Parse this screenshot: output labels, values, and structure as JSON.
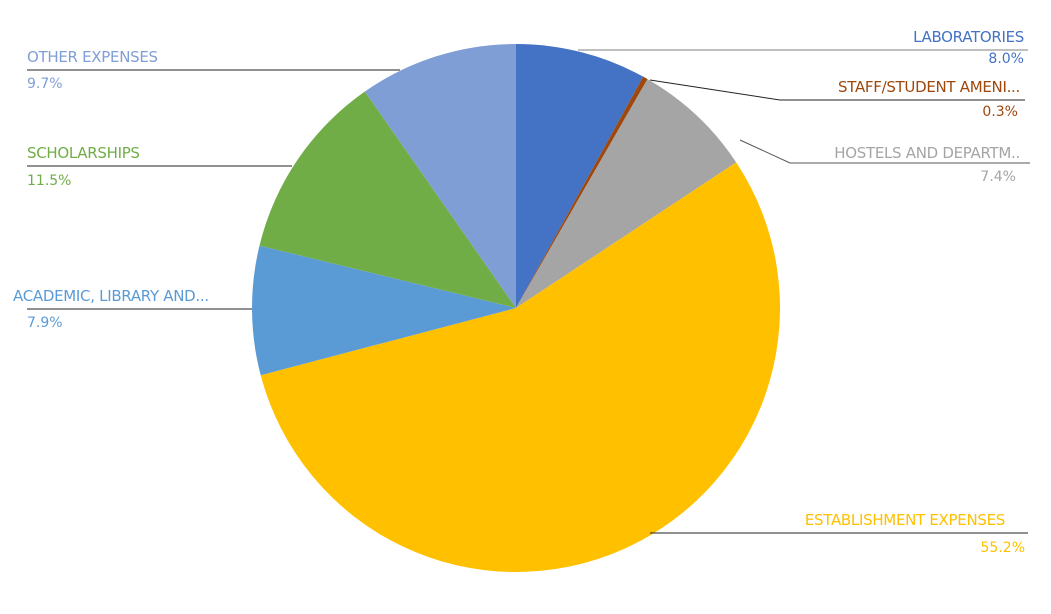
{
  "chart_data": {
    "type": "pie",
    "title": "",
    "start_angle": "12 o'clock",
    "direction": "clockwise",
    "legend": "none (data labels with leader lines)",
    "slices": [
      {
        "label": "LABORATORIES",
        "value": 8.0,
        "value_label": "8.0%",
        "color": "#4472C4"
      },
      {
        "label": "STAFF/STUDENT AMENI...",
        "value": 0.3,
        "value_label": "0.3%",
        "color": "#9E480E"
      },
      {
        "label": "HOSTELS AND DEPARTM..",
        "value": 7.4,
        "value_label": "7.4%",
        "color": "#A5A5A5"
      },
      {
        "label": "ESTABLISHMENT EXPENSES",
        "value": 55.2,
        "value_label": "55.2%",
        "color": "#FFC000"
      },
      {
        "label": "ACADEMIC, LIBRARY AND...",
        "value": 7.9,
        "value_label": "7.9%",
        "color": "#5B9BD5"
      },
      {
        "label": "SCHOLARSHIPS",
        "value": 11.5,
        "value_label": "11.5%",
        "color": "#70AD47"
      },
      {
        "label": "OTHER EXPENSES",
        "value": 9.7,
        "value_label": "9.7%",
        "color": "#7F9ED6"
      }
    ]
  }
}
